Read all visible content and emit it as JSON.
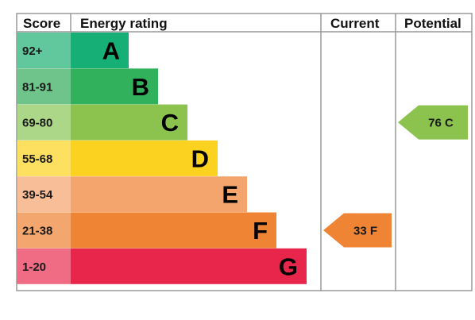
{
  "header": {
    "score": "Score",
    "energy_rating": "Energy rating",
    "current": "Current",
    "potential": "Potential"
  },
  "chart_data": {
    "type": "bar",
    "title": "",
    "bands": [
      {
        "letter": "A",
        "range": "92+",
        "color": "#16b077",
        "score_bg": "#61c79c"
      },
      {
        "letter": "B",
        "range": "81-91",
        "color": "#32b15c",
        "score_bg": "#6fc48b"
      },
      {
        "letter": "C",
        "range": "69-80",
        "color": "#8bc34e",
        "score_bg": "#add788"
      },
      {
        "letter": "D",
        "range": "55-68",
        "color": "#fcd220",
        "score_bg": "#fde05f"
      },
      {
        "letter": "E",
        "range": "39-54",
        "color": "#f4a56d",
        "score_bg": "#f7be98"
      },
      {
        "letter": "F",
        "range": "21-38",
        "color": "#ef8435",
        "score_bg": "#f3a66d"
      },
      {
        "letter": "G",
        "range": "1-20",
        "color": "#e8254a",
        "score_bg": "#ef6c84"
      }
    ],
    "current": {
      "value": 33,
      "letter": "F",
      "label": "33  F",
      "color": "#ef8435"
    },
    "potential": {
      "value": 76,
      "letter": "C",
      "label": "76  C",
      "color": "#8bc34e"
    }
  }
}
